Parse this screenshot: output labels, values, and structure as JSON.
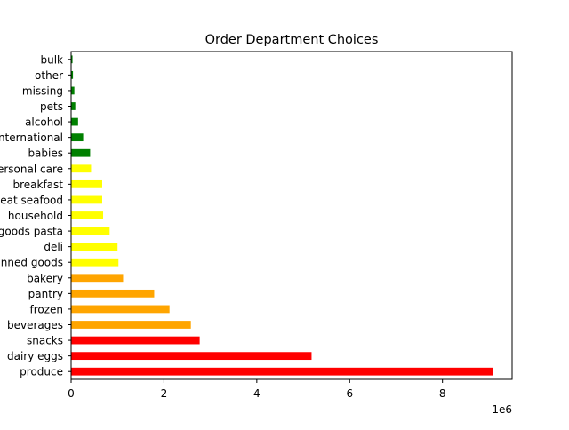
{
  "chart_data": {
    "type": "bar",
    "orientation": "horizontal",
    "title": "Order Department Choices",
    "xlabel": "",
    "ylabel": "",
    "x_offset_label": "1e6",
    "xlim": [
      0,
      9.5
    ],
    "x_ticks": [
      0,
      2,
      4,
      6,
      8
    ],
    "x_tick_labels": [
      "0",
      "2",
      "4",
      "6",
      "8"
    ],
    "grid": false,
    "legend": "none",
    "categories": [
      "produce",
      "dairy eggs",
      "snacks",
      "beverages",
      "frozen",
      "pantry",
      "bakery",
      "canned goods",
      "deli",
      "dry goods pasta",
      "household",
      "meat seafood",
      "breakfast",
      "personal care",
      "babies",
      "international",
      "alcohol",
      "pets",
      "missing",
      "other",
      "bulk"
    ],
    "values": [
      9.08,
      5.18,
      2.77,
      2.58,
      2.12,
      1.79,
      1.12,
      1.02,
      1.0,
      0.83,
      0.69,
      0.67,
      0.67,
      0.43,
      0.41,
      0.26,
      0.15,
      0.09,
      0.07,
      0.04,
      0.03
    ],
    "bar_colors": [
      "#ff0000",
      "#ff0000",
      "#ff0000",
      "#ffa500",
      "#ffa500",
      "#ffa500",
      "#ffa500",
      "#ffff00",
      "#ffff00",
      "#ffff00",
      "#ffff00",
      "#ffff00",
      "#ffff00",
      "#ffff00",
      "#008000",
      "#008000",
      "#008000",
      "#008000",
      "#008000",
      "#008000",
      "#008000"
    ]
  }
}
